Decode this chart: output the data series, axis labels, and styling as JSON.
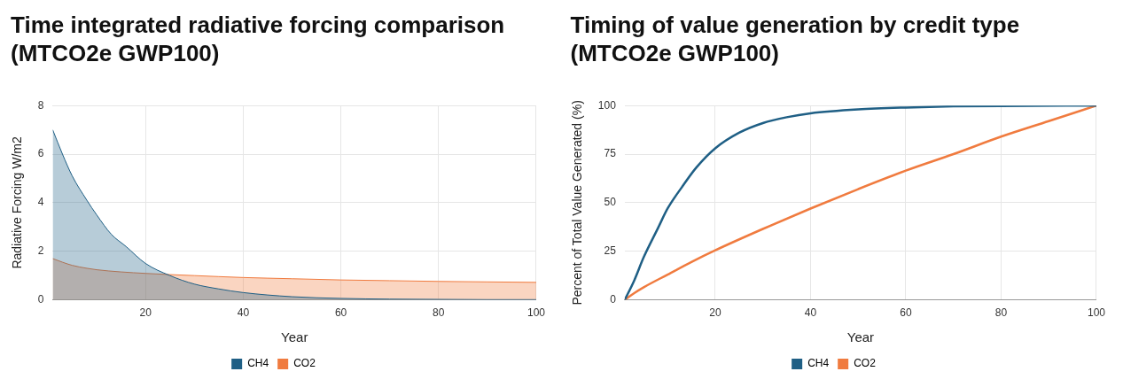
{
  "chart_data": [
    {
      "type": "area",
      "title": "Time integrated radiative forcing comparison (MTCO2e GWP100)",
      "xlabel": "Year",
      "ylabel": "Radiative Forcing W/m2",
      "xlim": [
        1,
        100
      ],
      "xticks": [
        20,
        40,
        60,
        80,
        100
      ],
      "ylim": [
        0,
        8
      ],
      "yticks": [
        0,
        2,
        4,
        6,
        8
      ],
      "grid": true,
      "legend": "bottom",
      "series": [
        {
          "name": "CH4",
          "color": "#1f5f85",
          "x": [
            1,
            3,
            5,
            8,
            10,
            13,
            16,
            20,
            25,
            30,
            35,
            40,
            50,
            60,
            70,
            80,
            90,
            100
          ],
          "values": [
            7.0,
            6.0,
            5.1,
            4.1,
            3.5,
            2.7,
            2.2,
            1.5,
            1.0,
            0.65,
            0.45,
            0.3,
            0.13,
            0.06,
            0.03,
            0.02,
            0.01,
            0.01
          ]
        },
        {
          "name": "CO2",
          "color": "#f07b3f",
          "x": [
            1,
            3,
            5,
            8,
            10,
            15,
            20,
            25,
            30,
            40,
            50,
            60,
            70,
            80,
            90,
            100
          ],
          "values": [
            1.7,
            1.55,
            1.42,
            1.3,
            1.24,
            1.15,
            1.09,
            1.04,
            1.0,
            0.92,
            0.87,
            0.82,
            0.79,
            0.76,
            0.74,
            0.72
          ]
        }
      ]
    },
    {
      "type": "line",
      "title": "Timing of value generation by credit type (MTCO2e GWP100)",
      "xlabel": "Year",
      "ylabel": "Percent of Total Value Generated (%)",
      "xlim": [
        1,
        100
      ],
      "xticks": [
        20,
        40,
        60,
        80,
        100
      ],
      "ylim": [
        0,
        100
      ],
      "yticks": [
        0,
        25,
        50,
        75,
        100
      ],
      "grid": true,
      "legend": "bottom",
      "series": [
        {
          "name": "CH4",
          "color": "#1f5f85",
          "x": [
            1,
            3,
            5,
            8,
            10,
            13,
            16,
            20,
            25,
            30,
            35,
            40,
            50,
            60,
            70,
            80,
            100
          ],
          "values": [
            0,
            10,
            22,
            37,
            47,
            58,
            68,
            78,
            86,
            91,
            94,
            96,
            98,
            99,
            99.6,
            99.8,
            100
          ]
        },
        {
          "name": "CO2",
          "color": "#f07b3f",
          "x": [
            1,
            3,
            5,
            10,
            15,
            20,
            30,
            40,
            50,
            60,
            70,
            80,
            90,
            100
          ],
          "values": [
            0,
            3.5,
            6.5,
            13,
            19.5,
            25.5,
            36.5,
            47,
            57,
            66.5,
            75,
            84,
            92,
            100
          ]
        }
      ]
    }
  ]
}
